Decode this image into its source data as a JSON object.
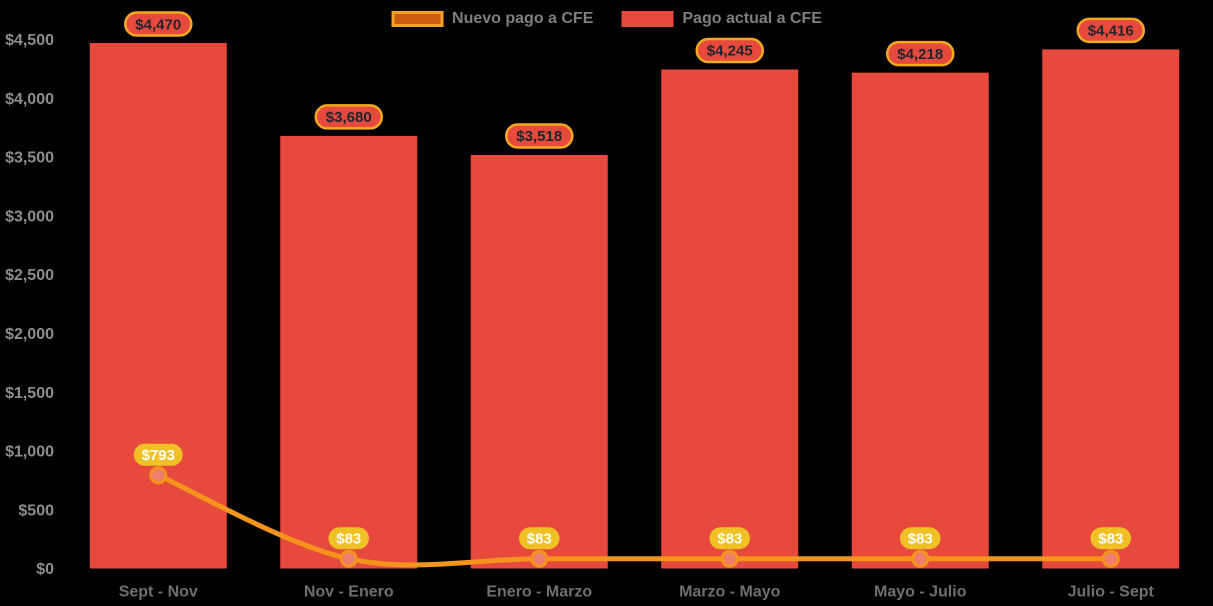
{
  "chart_data": {
    "type": "bar",
    "subtype": "bar-with-line-overlay",
    "categories": [
      "Sept - Nov",
      "Nov - Enero",
      "Enero - Marzo",
      "Marzo - Mayo",
      "Mayo - Julio",
      "Julio - Sept"
    ],
    "series": [
      {
        "name": "Nuevo pago a CFE",
        "type": "line",
        "values": [
          793,
          83,
          83,
          83,
          83,
          83
        ],
        "labels": [
          "$793",
          "$83",
          "$83",
          "$83",
          "$83",
          "$83"
        ]
      },
      {
        "name": "Pago actual a CFE",
        "type": "bar",
        "values": [
          4470,
          3680,
          3518,
          4245,
          4218,
          4416
        ],
        "labels": [
          "$4,470",
          "$3,680",
          "$3,518",
          "$4,245",
          "$4,218",
          "$4,416"
        ]
      }
    ],
    "title": "",
    "xlabel": "",
    "ylabel": "",
    "ylim": [
      0,
      4500
    ],
    "ytick_step": 500,
    "yticks": [
      "$0",
      "$500",
      "$1,000",
      "$1,500",
      "$2,000",
      "$2,500",
      "$3,000",
      "$3,500",
      "$4,000",
      "$4,500"
    ],
    "grid": false,
    "legend_position": "top-center",
    "background": "#000000"
  },
  "legend": {
    "items": [
      {
        "label": "Nuevo pago a CFE",
        "swatch_fill": "#CE5A0D",
        "swatch_border": "#F2A129"
      },
      {
        "label": "Pago actual a CFE",
        "swatch_fill": "#E8493D",
        "swatch_border": "#E8493D"
      }
    ]
  },
  "colors": {
    "background": "#000000",
    "bar_fill": "#E8493D",
    "line_stroke": "#F5941D",
    "marker_fill": "#EF7E6F",
    "marker_stroke": "#F5941D",
    "bar_label_fill": "#E8493D",
    "bar_label_border": "#F2A81F",
    "bar_label_text": "#1E252F",
    "point_label_fill": "#EFC125",
    "point_label_text": "#FFFFFF",
    "y_axis_text": "#8E8E8E",
    "x_axis_text": "#6F6F6F",
    "legend_text": "#7F7F7F"
  }
}
